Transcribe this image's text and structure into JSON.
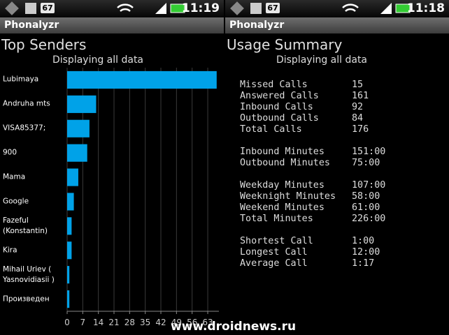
{
  "left": {
    "status": {
      "badge": "67",
      "time": "11:19"
    },
    "app_title": "Phonalyzr",
    "heading": "Top Senders",
    "subtitle": "Displaying all data"
  },
  "chart_data": {
    "type": "bar",
    "orientation": "horizontal",
    "categories": [
      "Lubimaya",
      "Andruha mts",
      "VISA85377;",
      "900",
      "Mama",
      "Google",
      "Fazeful (Konstantin)",
      "Kira",
      "Mihail Uriev ( Yasnovidiasii )",
      "Произведен"
    ],
    "values": [
      67,
      13,
      10,
      9,
      5,
      3,
      2,
      2,
      1,
      1
    ],
    "color": "#00a2e8",
    "xlim": [
      0,
      68
    ],
    "xticks": [
      0,
      7,
      14,
      21,
      28,
      35,
      42,
      49,
      56,
      63
    ],
    "grid": true
  },
  "right": {
    "status": {
      "badge": "67",
      "time": "11:18"
    },
    "app_title": "Phonalyzr",
    "heading": "Usage Summary",
    "subtitle": "Displaying all data",
    "groups": [
      [
        {
          "label": "Missed Calls",
          "value": "15"
        },
        {
          "label": "Answered Calls",
          "value": "161"
        },
        {
          "label": "Inbound Calls",
          "value": "92"
        },
        {
          "label": "Outbound Calls",
          "value": "84"
        },
        {
          "label": "Total Calls",
          "value": "176"
        }
      ],
      [
        {
          "label": "Inbound Minutes",
          "value": "151:00"
        },
        {
          "label": "Outbound Minutes",
          "value": "75:00"
        }
      ],
      [
        {
          "label": "Weekday Minutes",
          "value": "107:00"
        },
        {
          "label": "Weeknight Minutes",
          "value": "58:00"
        },
        {
          "label": "Weekend Minutes",
          "value": "61:00"
        },
        {
          "label": "Total Minutes",
          "value": "226:00"
        }
      ],
      [
        {
          "label": "Shortest Call",
          "value": "1:00"
        },
        {
          "label": "Longest Call",
          "value": "12:00"
        },
        {
          "label": "Average Call",
          "value": "1:17"
        }
      ]
    ]
  },
  "watermark": "www.droidnews.ru"
}
